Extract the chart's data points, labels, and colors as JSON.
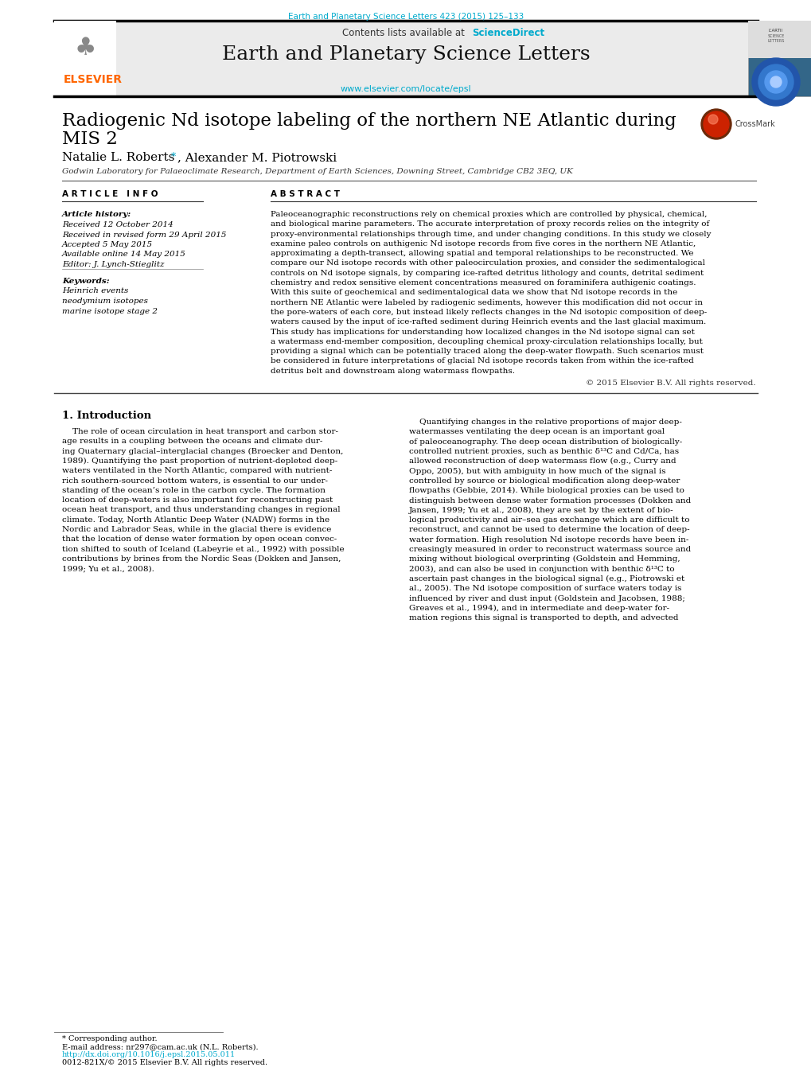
{
  "journal_ref": "Earth and Planetary Science Letters 423 (2015) 125–133",
  "journal_ref_color": "#00AACC",
  "header_bg": "#EBEBEB",
  "journal_name": "Earth and Planetary Science Letters",
  "sciencedirect_color": "#00AACC",
  "elsevier_url": "www.elsevier.com/locate/epsl",
  "elsevier_url_color": "#00AACC",
  "elsevier_color": "#FF6600",
  "article_title_line1": "Radiogenic Nd isotope labeling of the northern NE Atlantic during",
  "article_title_line2": "MIS 2",
  "author_name": "Natalie L. Roberts",
  "author_rest": ", Alexander M. Piotrowski",
  "affiliation": "Godwin Laboratory for Palaeoclimate Research, Department of Earth Sciences, Downing Street, Cambridge CB2 3EQ, UK",
  "article_info_header": "A R T I C L E   I N F O",
  "abstract_header": "A B S T R A C T",
  "article_history_label": "Article history:",
  "received1": "Received 12 October 2014",
  "received2": "Received in revised form 29 April 2015",
  "accepted": "Accepted 5 May 2015",
  "available": "Available online 14 May 2015",
  "editor": "Editor: J. Lynch-Stieglitz",
  "keywords_label": "Keywords:",
  "keyword1": "Heinrich events",
  "keyword2": "neodymium isotopes",
  "keyword3": "marine isotope stage 2",
  "abstract_lines": [
    "Paleoceanographic reconstructions rely on chemical proxies which are controlled by physical, chemical,",
    "and biological marine parameters. The accurate interpretation of proxy records relies on the integrity of",
    "proxy-environmental relationships through time, and under changing conditions. In this study we closely",
    "examine paleo controls on authigenic Nd isotope records from five cores in the northern NE Atlantic,",
    "approximating a depth-transect, allowing spatial and temporal relationships to be reconstructed. We",
    "compare our Nd isotope records with other paleocirculation proxies, and consider the sedimentalogical",
    "controls on Nd isotope signals, by comparing ice-rafted detritus lithology and counts, detrital sediment",
    "chemistry and redox sensitive element concentrations measured on foraminifera authigenic coatings.",
    "With this suite of geochemical and sedimentalogical data we show that Nd isotope records in the",
    "northern NE Atlantic were labeled by radiogenic sediments, however this modification did not occur in",
    "the pore-waters of each core, but instead likely reflects changes in the Nd isotopic composition of deep-",
    "waters caused by the input of ice-rafted sediment during Heinrich events and the last glacial maximum.",
    "This study has implications for understanding how localized changes in the Nd isotope signal can set",
    "a watermass end-member composition, decoupling chemical proxy-circulation relationships locally, but",
    "providing a signal which can be potentially traced along the deep-water flowpath. Such scenarios must",
    "be considered in future interpretations of glacial Nd isotope records taken from within the ice-rafted",
    "detritus belt and downstream along watermass flowpaths."
  ],
  "copyright": "© 2015 Elsevier B.V. All rights reserved.",
  "intro_heading": "1. Introduction",
  "intro_col1_lines": [
    "    The role of ocean circulation in heat transport and carbon stor-",
    "age results in a coupling between the oceans and climate dur-",
    "ing Quaternary glacial–interglacial changes (Broecker and Denton,",
    "1989). Quantifying the past proportion of nutrient-depleted deep-",
    "waters ventilated in the North Atlantic, compared with nutrient-",
    "rich southern-sourced bottom waters, is essential to our under-",
    "standing of the ocean’s role in the carbon cycle. The formation",
    "location of deep-waters is also important for reconstructing past",
    "ocean heat transport, and thus understanding changes in regional",
    "climate. Today, North Atlantic Deep Water (NADW) forms in the",
    "Nordic and Labrador Seas, while in the glacial there is evidence",
    "that the location of dense water formation by open ocean convec-",
    "tion shifted to south of Iceland (Labeyrie et al., 1992) with possible",
    "contributions by brines from the Nordic Seas (Dokken and Jansen,",
    "1999; Yu et al., 2008)."
  ],
  "intro_col2_lines": [
    "    Quantifying changes in the relative proportions of major deep-",
    "watermasses ventilating the deep ocean is an important goal",
    "of paleoceanography. The deep ocean distribution of biologically-",
    "controlled nutrient proxies, such as benthic δ¹³C and Cd/Ca, has",
    "allowed reconstruction of deep watermass flow (e.g., Curry and",
    "Oppo, 2005), but with ambiguity in how much of the signal is",
    "controlled by source or biological modification along deep-water",
    "flowpaths (Gebbie, 2014). While biological proxies can be used to",
    "distinguish between dense water formation processes (Dokken and",
    "Jansen, 1999; Yu et al., 2008), they are set by the extent of bio-",
    "logical productivity and air–sea gas exchange which are difficult to",
    "reconstruct, and cannot be used to determine the location of deep-",
    "water formation. High resolution Nd isotope records have been in-",
    "creasingly measured in order to reconstruct watermass source and",
    "mixing without biological overprinting (Goldstein and Hemming,",
    "2003), and can also be used in conjunction with benthic δ¹³C to",
    "ascertain past changes in the biological signal (e.g., Piotrowski et",
    "al., 2005). The Nd isotope composition of surface waters today is",
    "influenced by river and dust input (Goldstein and Jacobsen, 1988;",
    "Greaves et al., 1994), and in intermediate and deep-water for-",
    "mation regions this signal is transported to depth, and advected"
  ],
  "footnote_star": "* Corresponding author.",
  "footnote_email": "E-mail address: nr297@cam.ac.uk (N.L. Roberts).",
  "footnote_doi": "http://dx.doi.org/10.1016/j.epsl.2015.05.011",
  "footnote_issn": "0012-821X/© 2015 Elsevier B.V. All rights reserved.",
  "background_color": "#FFFFFF",
  "link_color": "#00AACC"
}
